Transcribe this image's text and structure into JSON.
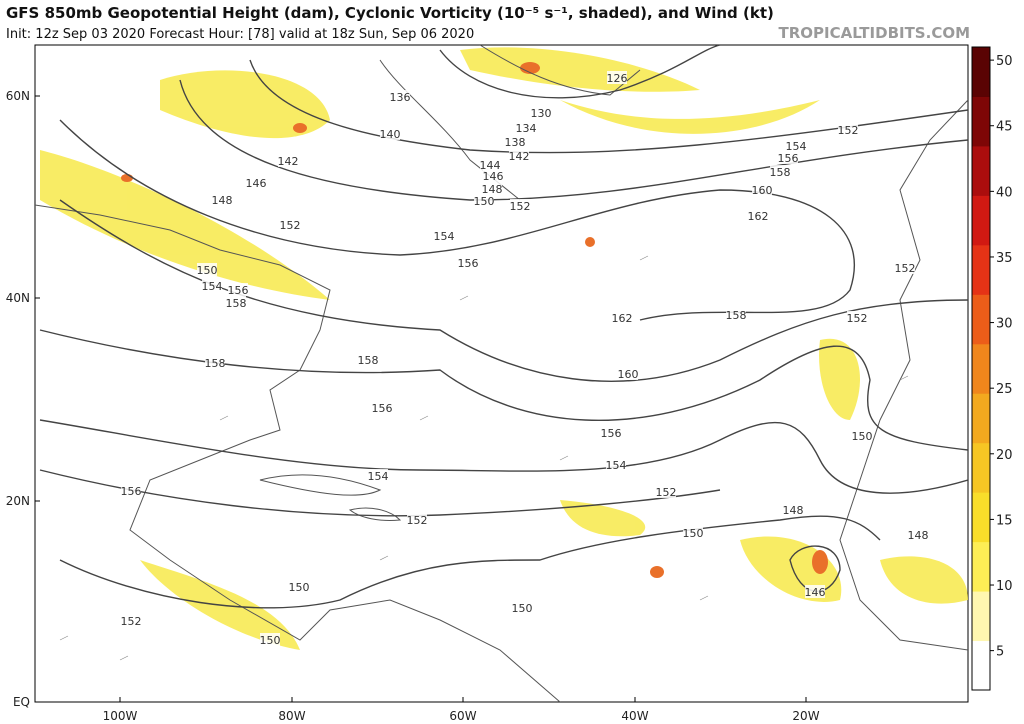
{
  "title": "GFS 850mb Geopotential Height (dam), Cyclonic Vorticity (10⁻⁵ s⁻¹, shaded), and Wind (kt)",
  "subtitle": "Init: 12z Sep 03 2020   Forecast Hour: [78]   valid at 18z Sun, Sep 06 2020",
  "watermark": "TROPICALTIDBITS.COM",
  "lat_labels": [
    "60N",
    "40N",
    "20N",
    "EQ"
  ],
  "lon_labels": [
    "100W",
    "80W",
    "60W",
    "40W",
    "20W"
  ],
  "contour_labels": [
    126,
    130,
    134,
    136,
    138,
    140,
    142,
    142,
    144,
    146,
    148,
    146,
    148,
    150,
    152,
    152,
    154,
    156,
    150,
    154,
    156,
    158,
    162,
    160,
    158,
    156,
    154,
    152,
    162,
    158,
    152,
    152,
    160,
    158,
    156,
    158,
    156,
    154,
    154,
    152,
    152,
    150,
    150,
    148,
    148,
    146,
    150,
    150,
    150,
    152,
    156
  ],
  "colorbar": {
    "range": [
      2,
      51
    ],
    "ticks": [
      5,
      10,
      15,
      20,
      25,
      30,
      35,
      40,
      45,
      50
    ],
    "colors": [
      "#ffffff",
      "#fff7b0",
      "#fdee55",
      "#f9de2a",
      "#f6c624",
      "#f3a91f",
      "#f0861c",
      "#ec5d19",
      "#e53316",
      "#d11912",
      "#ab0d0d",
      "#7e0606",
      "#5a0303"
    ]
  }
}
